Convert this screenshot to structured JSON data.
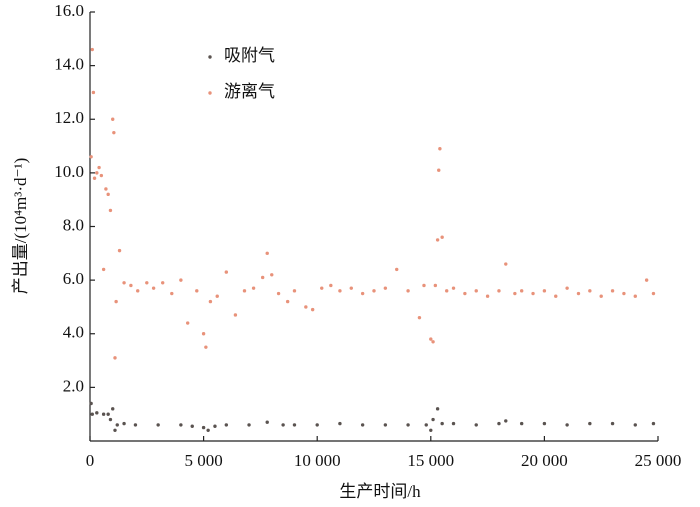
{
  "chart_data": {
    "type": "scatter",
    "x_label": "生产时间/h",
    "y_label": "产出量/(10⁴m³·d⁻¹)",
    "xlim": [
      0,
      25000
    ],
    "ylim": [
      0,
      16
    ],
    "xticks": [
      0,
      {
        "value": 5000,
        "label": "5 000"
      },
      {
        "value": 10000,
        "label": "10 000"
      },
      {
        "value": 15000,
        "label": "15 000"
      },
      {
        "value": 20000,
        "label": "20 000"
      },
      {
        "value": 25000,
        "label": "25 000"
      }
    ],
    "yticks": [
      {
        "value": 2,
        "label": "2.0"
      },
      {
        "value": 4,
        "label": "4.0"
      },
      {
        "value": 6,
        "label": "6.0"
      },
      {
        "value": 8,
        "label": "8.0"
      },
      {
        "value": 10,
        "label": "10.0"
      },
      {
        "value": 12,
        "label": "12.0"
      },
      {
        "value": 14,
        "label": "14.0"
      },
      {
        "value": 16,
        "label": "16.0"
      }
    ],
    "series": [
      {
        "name": "吸附气",
        "color": "#5a5350",
        "x": [
          50,
          100,
          300,
          600,
          800,
          900,
          1000,
          1100,
          1200,
          1500,
          2000,
          3000,
          4000,
          4500,
          5000,
          5200,
          5500,
          6000,
          7000,
          7800,
          8500,
          9000,
          10000,
          11000,
          12000,
          13000,
          14000,
          14800,
          15000,
          15100,
          15300,
          15500,
          16000,
          17000,
          18000,
          18300,
          19000,
          20000,
          21000,
          22000,
          23000,
          24000,
          24800
        ],
        "values": [
          1.4,
          1.0,
          1.05,
          1.0,
          1.0,
          0.8,
          1.2,
          0.4,
          0.6,
          0.65,
          0.6,
          0.6,
          0.6,
          0.55,
          0.5,
          0.4,
          0.55,
          0.6,
          0.6,
          0.7,
          0.6,
          0.6,
          0.6,
          0.65,
          0.6,
          0.6,
          0.6,
          0.6,
          0.4,
          0.8,
          1.2,
          0.65,
          0.65,
          0.6,
          0.65,
          0.75,
          0.65,
          0.65,
          0.6,
          0.65,
          0.65,
          0.6,
          0.65
        ]
      },
      {
        "name": "游离气",
        "color": "#e8927a",
        "x": [
          50,
          100,
          150,
          200,
          300,
          400,
          500,
          600,
          700,
          800,
          900,
          1000,
          1050,
          1100,
          1150,
          1300,
          1500,
          1800,
          2100,
          2500,
          2800,
          3200,
          3600,
          4000,
          4300,
          4700,
          5000,
          5100,
          5300,
          5600,
          6000,
          6400,
          6800,
          7200,
          7600,
          7800,
          8000,
          8300,
          8700,
          9000,
          9500,
          9800,
          10200,
          10600,
          11000,
          11500,
          12000,
          12500,
          13000,
          13500,
          14000,
          14500,
          14700,
          15000,
          15100,
          15200,
          15300,
          15350,
          15400,
          15500,
          15700,
          16000,
          16500,
          17000,
          17500,
          18000,
          18300,
          18700,
          19000,
          19500,
          20000,
          20500,
          21000,
          21500,
          22000,
          22500,
          23000,
          23500,
          24000,
          24500,
          24800
        ],
        "values": [
          10.6,
          14.6,
          13.0,
          9.8,
          10.0,
          10.2,
          9.9,
          6.4,
          9.4,
          9.2,
          8.6,
          12.0,
          11.5,
          3.1,
          5.2,
          7.1,
          5.9,
          5.8,
          5.6,
          5.9,
          5.7,
          5.9,
          5.5,
          6.0,
          4.4,
          5.6,
          4.0,
          3.5,
          5.2,
          5.4,
          6.3,
          4.7,
          5.6,
          5.7,
          6.1,
          7.0,
          6.2,
          5.5,
          5.2,
          5.6,
          5.0,
          4.9,
          5.7,
          5.8,
          5.6,
          5.7,
          5.5,
          5.6,
          5.7,
          6.4,
          5.6,
          4.6,
          5.8,
          3.8,
          3.7,
          5.8,
          7.5,
          10.1,
          10.9,
          7.6,
          5.6,
          5.7,
          5.5,
          5.6,
          5.4,
          5.6,
          6.6,
          5.5,
          5.6,
          5.5,
          5.6,
          5.4,
          5.7,
          5.5,
          5.6,
          5.4,
          5.6,
          5.5,
          5.4,
          6.0,
          5.5
        ]
      }
    ]
  }
}
